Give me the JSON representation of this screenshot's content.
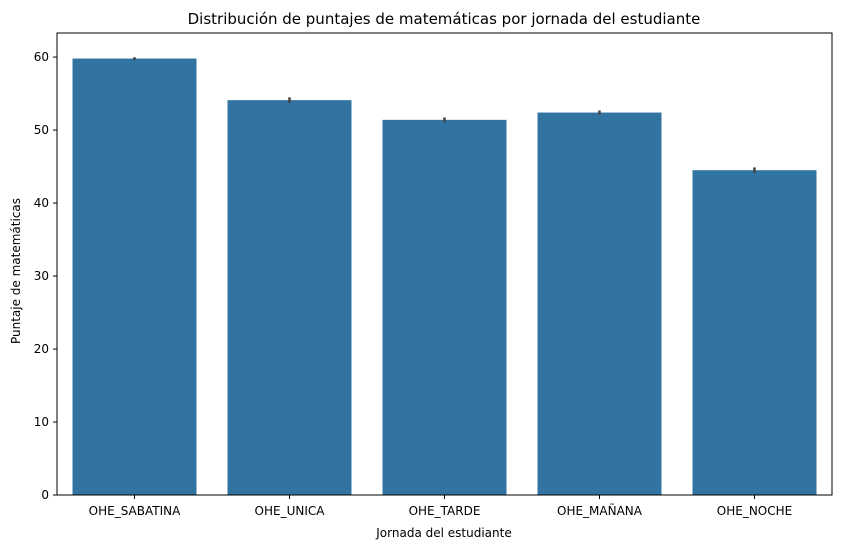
{
  "chart_data": {
    "type": "bar",
    "title": "Distribución de puntajes de matemáticas por jornada del estudiante",
    "xlabel": "Jornada del estudiante",
    "ylabel": "Puntaje de matemáticas",
    "categories": [
      "OHE_SABATINA",
      "OHE_UNICA",
      "OHE_TARDE",
      "OHE_MAÑANA",
      "OHE_NOCHE"
    ],
    "values": [
      59.8,
      54.1,
      51.4,
      52.4,
      44.5
    ],
    "error": [
      0.05,
      0.25,
      0.2,
      0.15,
      0.25
    ],
    "ylim": [
      0,
      63.3
    ],
    "yticks": [
      0,
      10,
      20,
      30,
      40,
      50,
      60
    ],
    "grid": false,
    "bar_color": "#3274a1",
    "error_color": "#444444"
  }
}
